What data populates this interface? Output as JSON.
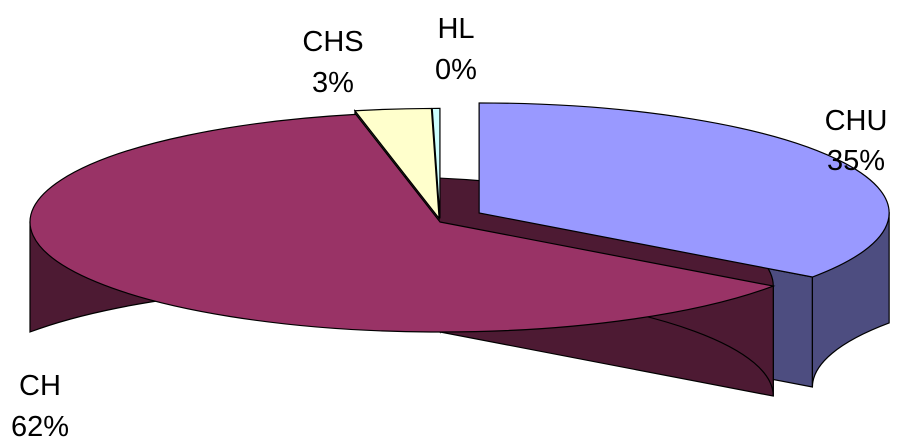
{
  "chart_data": {
    "type": "pie",
    "style": "3d-exploded",
    "title": "",
    "slices": [
      {
        "name": "CHU",
        "value": 35,
        "value_label": "35%",
        "top_color": "#9999ff",
        "side_color": "#4d4d80"
      },
      {
        "name": "CH",
        "value": 62,
        "value_label": "62%",
        "top_color": "#993366",
        "side_color": "#4d1a33"
      },
      {
        "name": "CHS",
        "value": 3,
        "value_label": "3%",
        "top_color": "#ffffcc",
        "side_color": "#808066"
      },
      {
        "name": "HL",
        "value": 0.3,
        "value_label": "0%",
        "top_color": "#ccffff",
        "side_color": "#668080"
      }
    ],
    "legend": "none",
    "grid": false
  }
}
